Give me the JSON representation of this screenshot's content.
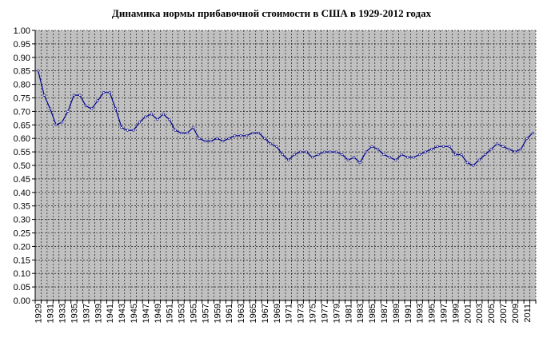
{
  "chart_data": {
    "type": "line",
    "title": "Динамика нормы прибавочной стоимости в США в 1929-2012 годах",
    "xlabel": "",
    "ylabel": "",
    "ylim": [
      0,
      1
    ],
    "y_ticks": [
      "0.00",
      "0.05",
      "0.10",
      "0.15",
      "0.20",
      "0.25",
      "0.30",
      "0.35",
      "0.40",
      "0.45",
      "0.50",
      "0.55",
      "0.60",
      "0.65",
      "0.70",
      "0.75",
      "0.80",
      "0.85",
      "0.90",
      "0.95",
      "1.00"
    ],
    "x_tick_labels": [
      "1929",
      "1931",
      "1933",
      "1935",
      "1937",
      "1939",
      "1941",
      "1943",
      "1945",
      "1947",
      "1949",
      "1951",
      "1953",
      "1955",
      "1957",
      "1959",
      "1961",
      "1963",
      "1965",
      "1967",
      "1969",
      "1971",
      "1973",
      "1975",
      "1977",
      "1979",
      "1981",
      "1983",
      "1985",
      "1987",
      "1989",
      "1991",
      "1993",
      "1995",
      "1997",
      "1999",
      "2001",
      "2003",
      "2005",
      "2007",
      "2009",
      "2011"
    ],
    "grid": true,
    "legend": "none",
    "colors": {
      "line": "#00008b",
      "plot_background": "#c0c0c0",
      "grid": "#000000"
    },
    "series": [
      {
        "x": [
          1929,
          1930,
          1931,
          1932,
          1933,
          1934,
          1935,
          1936,
          1937,
          1938,
          1939,
          1940,
          1941,
          1942,
          1943,
          1944,
          1945,
          1946,
          1947,
          1948,
          1949,
          1950,
          1951,
          1952,
          1953,
          1954,
          1955,
          1956,
          1957,
          1958,
          1959,
          1960,
          1961,
          1962,
          1963,
          1964,
          1965,
          1966,
          1967,
          1968,
          1969,
          1970,
          1971,
          1972,
          1973,
          1974,
          1975,
          1976,
          1977,
          1978,
          1979,
          1980,
          1981,
          1982,
          1983,
          1984,
          1985,
          1986,
          1987,
          1988,
          1989,
          1990,
          1991,
          1992,
          1993,
          1994,
          1995,
          1996,
          1997,
          1998,
          1999,
          2000,
          2001,
          2002,
          2003,
          2004,
          2005,
          2006,
          2007,
          2008,
          2009,
          2010,
          2011,
          2012
        ],
        "values": [
          0.85,
          0.76,
          0.71,
          0.65,
          0.66,
          0.7,
          0.76,
          0.76,
          0.72,
          0.71,
          0.74,
          0.77,
          0.77,
          0.71,
          0.64,
          0.63,
          0.63,
          0.66,
          0.68,
          0.69,
          0.67,
          0.69,
          0.67,
          0.63,
          0.62,
          0.62,
          0.64,
          0.6,
          0.59,
          0.59,
          0.6,
          0.59,
          0.6,
          0.61,
          0.61,
          0.61,
          0.62,
          0.62,
          0.6,
          0.58,
          0.57,
          0.54,
          0.52,
          0.54,
          0.55,
          0.55,
          0.53,
          0.54,
          0.55,
          0.55,
          0.55,
          0.54,
          0.52,
          0.53,
          0.51,
          0.55,
          0.57,
          0.56,
          0.54,
          0.53,
          0.52,
          0.54,
          0.53,
          0.53,
          0.54,
          0.55,
          0.56,
          0.57,
          0.57,
          0.57,
          0.54,
          0.54,
          0.51,
          0.5,
          0.52,
          0.54,
          0.56,
          0.58,
          0.57,
          0.56,
          0.55,
          0.56,
          0.6,
          0.62
        ]
      }
    ]
  }
}
